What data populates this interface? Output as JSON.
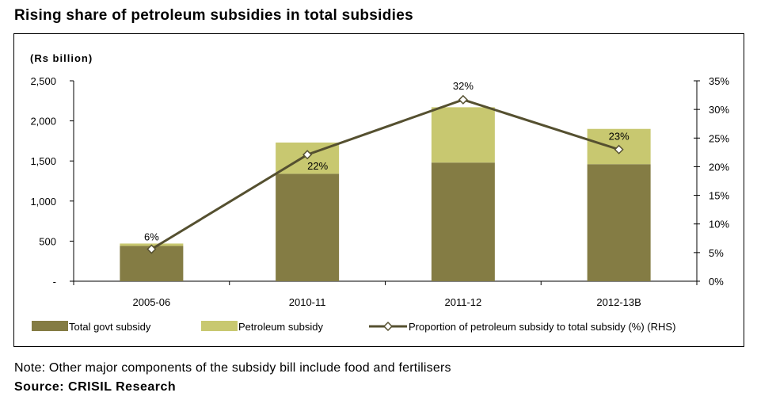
{
  "title": "Rising share of petroleum subsidies in total subsidies",
  "note": "Note: Other major components of the subsidy bill include food and fertilisers",
  "source": "Source: CRISIL Research",
  "colors": {
    "total": "#847c44",
    "petroleum": "#c8c870",
    "line": "#555030",
    "marker_fill": "#ffffff"
  },
  "chart_data": {
    "type": "bar",
    "stacked": true,
    "categories": [
      "2005-06",
      "2010-11",
      "2011-12",
      "2012-13B"
    ],
    "y_unit_label": "(Rs billion)",
    "y_ticks": [
      "-",
      "500",
      "1,000",
      "1,500",
      "2,000",
      "2,500"
    ],
    "y_tick_values": [
      0,
      500,
      1000,
      1500,
      2000,
      2500
    ],
    "ylim": [
      0,
      2500
    ],
    "y2_ticks": [
      "0%",
      "5%",
      "10%",
      "15%",
      "20%",
      "25%",
      "30%",
      "35%"
    ],
    "y2_tick_values": [
      0,
      5,
      10,
      15,
      20,
      25,
      30,
      35
    ],
    "y2lim": [
      0,
      35
    ],
    "series": [
      {
        "name": "Total govt subsidy",
        "type": "bar",
        "values": [
          440,
          1340,
          1480,
          1460
        ]
      },
      {
        "name": "Petroleum subsidy",
        "type": "bar",
        "values": [
          30,
          390,
          690,
          440
        ]
      },
      {
        "name": "Proportion of petroleum subsidy to total subsidy (%) (RHS)",
        "type": "line",
        "axis": "right",
        "values": [
          5.6,
          22.1,
          31.7,
          23.0
        ],
        "labels": [
          "6%",
          "22%",
          "32%",
          "23%"
        ]
      }
    ],
    "legend_position": "bottom",
    "grid": false
  }
}
